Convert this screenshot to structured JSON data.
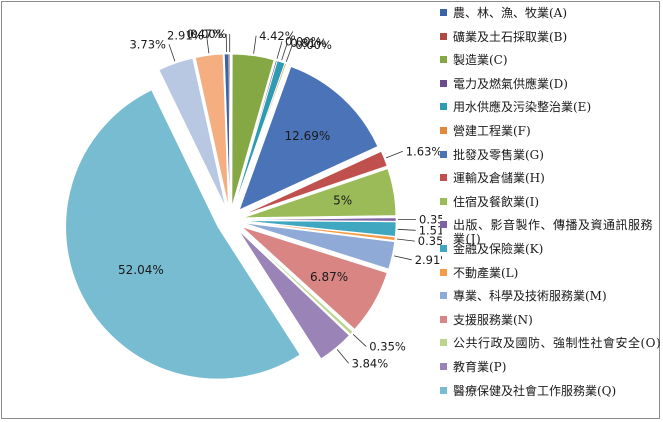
{
  "chart_data": {
    "type": "pie",
    "title": "",
    "legend_position": "right",
    "slices": [
      {
        "label": "農、林、漁、牧業(A)",
        "value": 0.47,
        "display": "0.47%",
        "color": "#3a64a8"
      },
      {
        "label": "礦業及土石採取業(B)",
        "value": 0.0,
        "display": "0.00%",
        "color": "#b04a45"
      },
      {
        "label": "製造業(C)",
        "value": 4.42,
        "display": "4.42%",
        "color": "#86a844"
      },
      {
        "label": "電力及燃氣供應業(D)",
        "value": 0.0,
        "display": "0.00%",
        "color": "#6a4c8c"
      },
      {
        "label": "用水供應及污染整治業(E)",
        "value": 0.81,
        "display": "0.81%",
        "color": "#2e9bb3"
      },
      {
        "label": "營建工程業(F)",
        "value": 0.0,
        "display": "0.00%",
        "color": "#e0893a"
      },
      {
        "label": "批發及零售業(G)",
        "value": 12.69,
        "display": "12.69%",
        "color": "#4a73b8"
      },
      {
        "label": "運輸及倉儲業(H)",
        "value": 1.63,
        "display": "1.63%",
        "color": "#c0504d"
      },
      {
        "label": "住宿及餐飲業(I)",
        "value": 5.0,
        "display": "5%",
        "color": "#9bbb59"
      },
      {
        "label": "出版、影音製作、傳播及資通訊服務業(J)",
        "value": 0.35,
        "display": "0.35%",
        "color": "#7f63a2"
      },
      {
        "label": "金融及保險業(K)",
        "value": 1.51,
        "display": "1.51%",
        "color": "#3fa7c0"
      },
      {
        "label": "不動產業(L)",
        "value": 0.35,
        "display": "0.35%",
        "color": "#f49b48"
      },
      {
        "label": "專業、科學及技術服務業(M)",
        "value": 2.91,
        "display": "2.91%",
        "color": "#8faad6"
      },
      {
        "label": "支援服務業(N)",
        "value": 6.87,
        "display": "6.87%",
        "color": "#d98584"
      },
      {
        "label": "公共行政及國防、強制性社會安全(O)",
        "value": 0.35,
        "display": "0.35%",
        "color": "#bcd48e"
      },
      {
        "label": "教育業(P)",
        "value": 3.84,
        "display": "3.84%",
        "color": "#9a83b6"
      },
      {
        "label": "醫療保健及社會工作服務業(Q)",
        "value": 52.04,
        "display": "52.04%",
        "color": "#77bcd0"
      },
      {
        "label": "",
        "value": 3.73,
        "display": "3.73%",
        "color": "#b8c7e2"
      },
      {
        "label": "",
        "value": 2.91,
        "display": "2.91%",
        "color": "#f4ae80"
      }
    ]
  }
}
